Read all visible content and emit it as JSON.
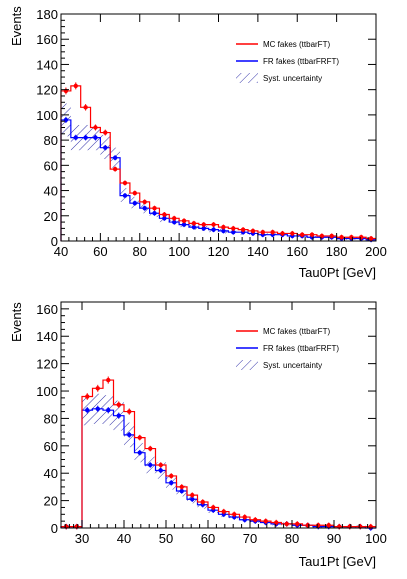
{
  "chart_data": [
    {
      "type": "histogram",
      "ylabel": "Events",
      "xlabel": "Tau0Pt [GeV]",
      "xlim": [
        40,
        200
      ],
      "ylim": [
        0,
        180
      ],
      "xticks": [
        40,
        60,
        80,
        100,
        120,
        140,
        160,
        180,
        200
      ],
      "yticks": [
        0,
        20,
        40,
        60,
        80,
        100,
        120,
        140,
        160,
        180
      ],
      "bin_edges": [
        40,
        45,
        50,
        55,
        60,
        65,
        70,
        75,
        80,
        85,
        90,
        95,
        100,
        105,
        110,
        115,
        120,
        125,
        130,
        135,
        140,
        145,
        150,
        155,
        160,
        165,
        170,
        175,
        180,
        185,
        190,
        195,
        200
      ],
      "legend_position": "top-right",
      "series": [
        {
          "name": "MC fakes (ttbarFT)",
          "color": "#ff0000",
          "values": [
            119,
            123,
            106,
            90,
            86,
            57,
            46,
            38,
            31,
            26,
            21,
            18,
            16,
            14,
            13,
            13,
            11,
            10,
            9,
            8,
            7,
            7,
            6,
            6,
            5,
            5,
            4,
            4,
            3,
            3,
            3,
            2
          ]
        },
        {
          "name": "FR fakes (ttbarFRFT)",
          "color": "#0000ff",
          "values": [
            96,
            82,
            82,
            82,
            74,
            66,
            36,
            30,
            26,
            22,
            18,
            15,
            13,
            11,
            10,
            9,
            8,
            7,
            7,
            6,
            5,
            5,
            5,
            4,
            4,
            3,
            3,
            3,
            2,
            2,
            2,
            1
          ]
        },
        {
          "name": "Syst. uncertainty",
          "color": "#3333aa",
          "lower": [
            83,
            72,
            72,
            72,
            65,
            58,
            31,
            26,
            22,
            19,
            15,
            13,
            11,
            9,
            8,
            7,
            6,
            6,
            5,
            5,
            4,
            4,
            4,
            3,
            3,
            2,
            2,
            2,
            1,
            1,
            1,
            0
          ],
          "upper": [
            109,
            92,
            92,
            92,
            84,
            74,
            42,
            35,
            30,
            25,
            21,
            17,
            15,
            13,
            12,
            11,
            10,
            8,
            8,
            7,
            6,
            6,
            6,
            5,
            5,
            4,
            4,
            4,
            3,
            3,
            3,
            2
          ]
        }
      ]
    },
    {
      "type": "histogram",
      "ylabel": "Events",
      "xlabel": "Tau1Pt [GeV]",
      "xlim": [
        25,
        100
      ],
      "ylim": [
        0,
        165
      ],
      "xticks": [
        30,
        40,
        50,
        60,
        70,
        80,
        90,
        100
      ],
      "yticks": [
        0,
        20,
        40,
        60,
        80,
        100,
        120,
        140,
        160
      ],
      "bin_edges": [
        25,
        27.5,
        30,
        32.5,
        35,
        37.5,
        40,
        42.5,
        45,
        47.5,
        50,
        52.5,
        55,
        57.5,
        60,
        62.5,
        65,
        67.5,
        70,
        72.5,
        75,
        77.5,
        80,
        82.5,
        85,
        87.5,
        90,
        92.5,
        95,
        97.5,
        100
      ],
      "legend_position": "top-right",
      "series": [
        {
          "name": "MC fakes (ttbarFT)",
          "color": "#ff0000",
          "values": [
            1,
            1,
            96,
            102,
            108,
            90,
            85,
            66,
            58,
            46,
            38,
            30,
            24,
            19,
            15,
            12,
            10,
            8,
            6,
            5,
            4,
            3,
            3,
            2,
            2,
            2,
            1,
            1,
            1,
            1
          ]
        },
        {
          "name": "FR fakes (ttbarFRFT)",
          "color": "#0000ff",
          "values": [
            1,
            1,
            86,
            87,
            86,
            82,
            68,
            55,
            46,
            42,
            33,
            27,
            21,
            17,
            13,
            10,
            8,
            6,
            5,
            4,
            3,
            3,
            2,
            2,
            1,
            1,
            1,
            1,
            1,
            0
          ]
        },
        {
          "name": "Syst. uncertainty",
          "color": "#3333aa",
          "lower": [
            0,
            0,
            75,
            76,
            75,
            71,
            59,
            48,
            40,
            36,
            28,
            23,
            18,
            14,
            11,
            8,
            7,
            5,
            4,
            3,
            2,
            2,
            1,
            1,
            0,
            0,
            0,
            0,
            0,
            0
          ],
          "upper": [
            2,
            2,
            97,
            98,
            97,
            93,
            77,
            62,
            52,
            48,
            38,
            31,
            24,
            20,
            15,
            12,
            9,
            7,
            6,
            5,
            4,
            4,
            3,
            3,
            2,
            2,
            2,
            2,
            2,
            1
          ]
        }
      ]
    }
  ]
}
